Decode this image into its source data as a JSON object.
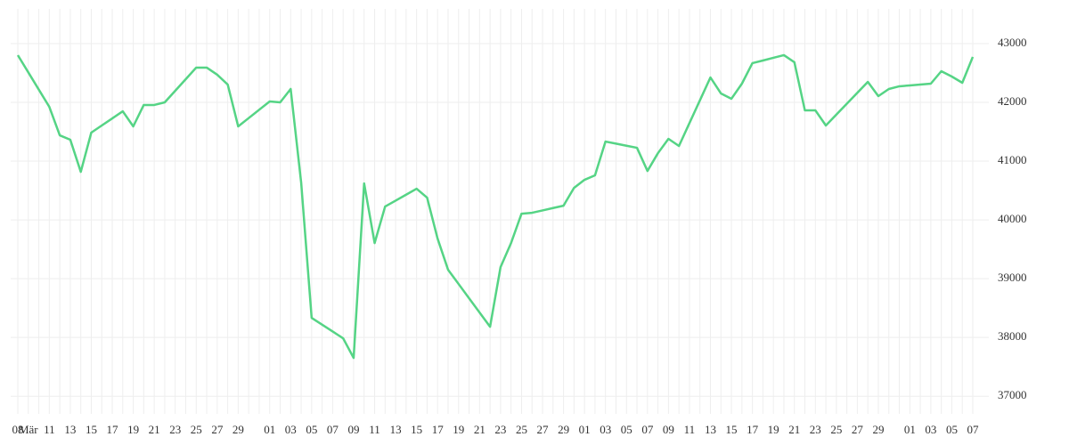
{
  "chart_data": {
    "type": "line",
    "categories": [
      "08",
      "Mär",
      null,
      "11",
      null,
      "13",
      null,
      "15",
      null,
      "17",
      null,
      "19",
      null,
      "21",
      null,
      "23",
      null,
      "25",
      null,
      "27",
      null,
      "29",
      null,
      null,
      "01",
      null,
      "03",
      null,
      "05",
      null,
      "07",
      null,
      "09",
      null,
      "11",
      null,
      "13",
      null,
      "15",
      null,
      "17",
      null,
      "19",
      null,
      "21",
      null,
      "23",
      null,
      "25",
      null,
      "27",
      null,
      "29",
      null,
      "01",
      null,
      "03",
      null,
      "05",
      null,
      "07",
      null,
      "09",
      null,
      "11",
      null,
      "13",
      null,
      "15",
      null,
      "17",
      null,
      "19",
      null,
      "21",
      null,
      "23",
      null,
      "25",
      null,
      "27",
      null,
      "29",
      null,
      null,
      "01",
      null,
      "03",
      null,
      "05",
      null,
      "07"
    ],
    "values": [
      42803,
      42510,
      42217,
      41924,
      41439,
      41364,
      40818,
      41485,
      41606,
      41727,
      41848,
      41591,
      41955,
      41955,
      42000,
      42197,
      42394,
      42591,
      42591,
      42470,
      42303,
      41591,
      41732,
      41874,
      42015,
      42000,
      42227,
      40636,
      38333,
      38217,
      38101,
      37985,
      37652,
      40621,
      39606,
      40227,
      40328,
      40429,
      40530,
      40379,
      39682,
      39152,
      38910,
      38667,
      38425,
      38182,
      39197,
      39606,
      40106,
      40121,
      40161,
      40202,
      40242,
      40545,
      40682,
      40758,
      41333,
      41298,
      41262,
      41227,
      40833,
      41136,
      41379,
      41258,
      41647,
      42035,
      42424,
      42152,
      42061,
      42318,
      42667,
      42712,
      42758,
      42803,
      42682,
      41864,
      41864,
      41606,
      41792,
      41977,
      42163,
      42348,
      42106,
      42227,
      42273,
      42288,
      42303,
      42318,
      42530,
      42439,
      42333,
      42773
    ],
    "color": "#55d485",
    "ylim": [
      36700,
      43590
    ],
    "yticks": [
      37000,
      38000,
      39000,
      40000,
      41000,
      42000,
      43000
    ],
    "grid": true
  }
}
